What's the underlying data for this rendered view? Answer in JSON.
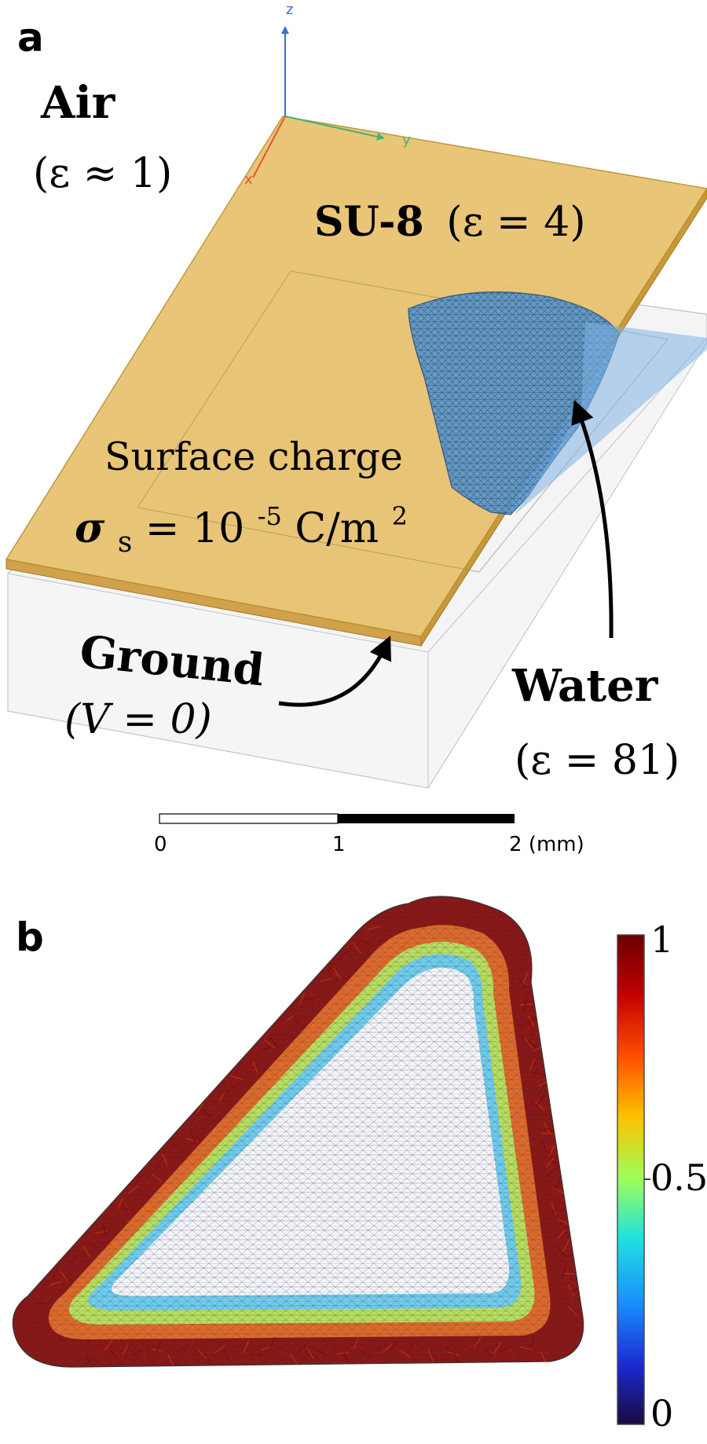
{
  "panel_a": {
    "letter": "a",
    "axis_z": "z",
    "axis_y": "y",
    "axis_x": "x",
    "air_name": "Air",
    "air_eps": "(ε ≈ 1)",
    "su8_name": "SU-8",
    "su8_eps": "(ε = 4)",
    "charge_label": "Surface charge",
    "sigma_symbol": "σ",
    "sigma_sub": "s",
    "sigma_eq": " = 10",
    "sigma_exp": "-5",
    "sigma_unit": " C/m",
    "sigma_unit_exp": "2",
    "ground_name": "Ground",
    "ground_v": "(V = 0)",
    "water_name": "Water",
    "water_eps": "(ε = 81)",
    "scalebar": {
      "ticks": [
        "0",
        "1",
        "2 (mm)"
      ]
    },
    "colors": {
      "su8_fill": "#e8c271",
      "su8_edge": "#b8902e",
      "water_fill": "#5a95cc",
      "water_mesh": "#1f4f7c",
      "axis_blue": "#3b6fd6",
      "axis_green": "#48b07a",
      "axis_red": "#e05a2a"
    }
  },
  "panel_b": {
    "letter": "b",
    "colorbar": {
      "ticks": [
        "1",
        "0.5",
        "0"
      ],
      "colors": [
        "#7f0000",
        "#ff0000",
        "#ff8c00",
        "#ffff00",
        "#7fff7f",
        "#00d0ff",
        "#0050ff",
        "#00008f",
        "#1a0a3a"
      ]
    }
  }
}
